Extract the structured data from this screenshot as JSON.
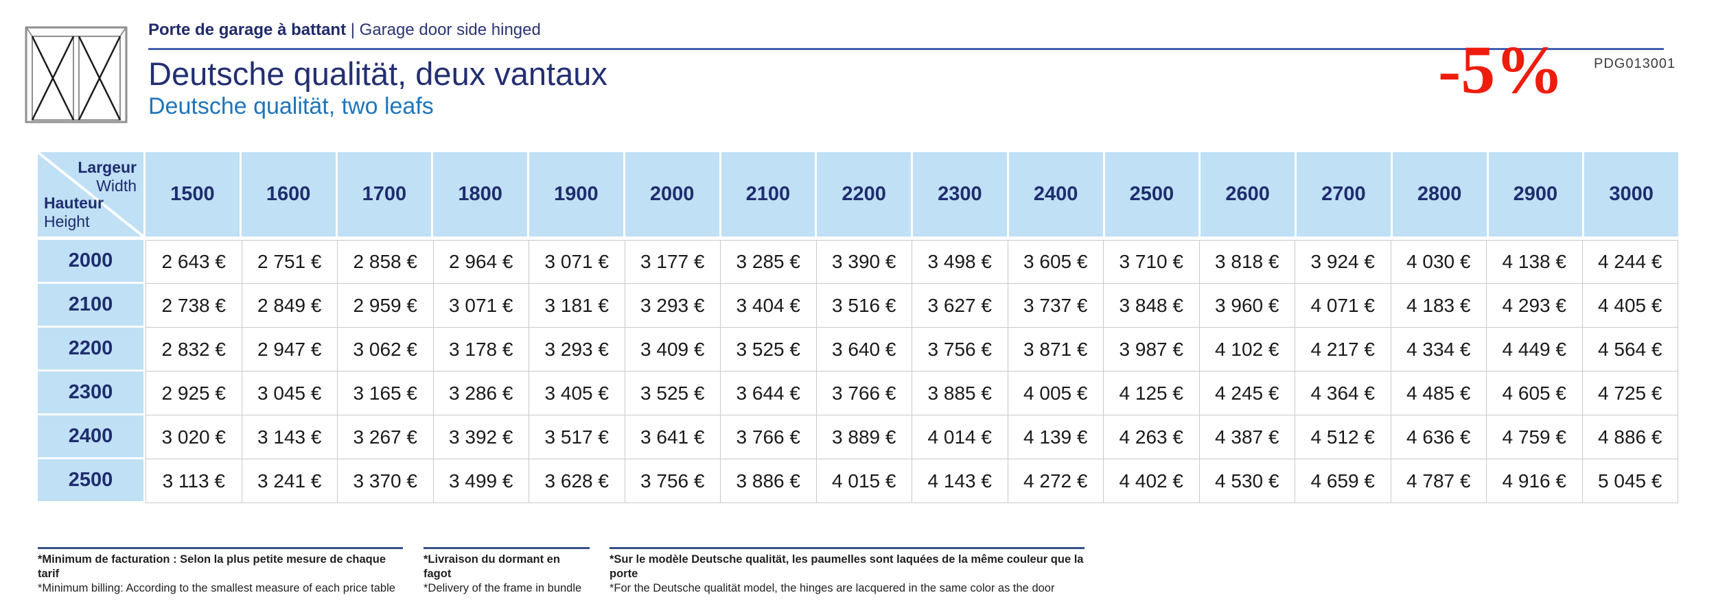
{
  "header": {
    "category_fr": "Porte de garage à battant",
    "category_sep": " | ",
    "category_en": "Garage door side hinged",
    "title_fr": "Deutsche qualität, deux vantaux",
    "title_en": "Deutsche qualität, two leafs",
    "promo": "-5%",
    "ref_code": "PDG013001"
  },
  "table": {
    "corner": {
      "largeur": "Largeur",
      "width": "Width",
      "hauteur": "Hauteur",
      "height": "Height"
    },
    "widths": [
      "1500",
      "1600",
      "1700",
      "1800",
      "1900",
      "2000",
      "2100",
      "2200",
      "2300",
      "2400",
      "2500",
      "2600",
      "2700",
      "2800",
      "2900",
      "3000"
    ],
    "rows": [
      {
        "height": "2000",
        "prices": [
          "2 643 €",
          "2 751 €",
          "2 858 €",
          "2 964 €",
          "3 071 €",
          "3 177 €",
          "3 285 €",
          "3 390 €",
          "3 498 €",
          "3 605 €",
          "3 710 €",
          "3 818 €",
          "3 924 €",
          "4 030 €",
          "4 138 €",
          "4 244 €"
        ]
      },
      {
        "height": "2100",
        "prices": [
          "2 738 €",
          "2 849 €",
          "2 959 €",
          "3 071 €",
          "3 181 €",
          "3 293 €",
          "3 404 €",
          "3 516 €",
          "3 627 €",
          "3 737 €",
          "3 848 €",
          "3 960 €",
          "4 071 €",
          "4 183 €",
          "4 293 €",
          "4 405 €"
        ]
      },
      {
        "height": "2200",
        "prices": [
          "2 832 €",
          "2 947 €",
          "3 062 €",
          "3 178 €",
          "3 293 €",
          "3 409 €",
          "3 525 €",
          "3 640 €",
          "3 756 €",
          "3 871 €",
          "3 987 €",
          "4 102 €",
          "4 217 €",
          "4 334 €",
          "4 449 €",
          "4 564 €"
        ]
      },
      {
        "height": "2300",
        "prices": [
          "2 925 €",
          "3 045 €",
          "3 165 €",
          "3 286 €",
          "3 405 €",
          "3 525 €",
          "3 644 €",
          "3 766 €",
          "3 885 €",
          "4 005 €",
          "4 125 €",
          "4 245 €",
          "4 364 €",
          "4 485 €",
          "4 605 €",
          "4 725 €"
        ]
      },
      {
        "height": "2400",
        "prices": [
          "3 020 €",
          "3 143 €",
          "3 267 €",
          "3 392 €",
          "3 517 €",
          "3 641 €",
          "3 766 €",
          "3 889 €",
          "4 014 €",
          "4 139 €",
          "4 263 €",
          "4 387 €",
          "4 512 €",
          "4 636 €",
          "4 759 €",
          "4 886 €"
        ]
      },
      {
        "height": "2500",
        "prices": [
          "3 113 €",
          "3 241 €",
          "3 370 €",
          "3 499 €",
          "3 628 €",
          "3 756 €",
          "3 886 €",
          "4 015 €",
          "4 143 €",
          "4 272 €",
          "4 402 €",
          "4 530 €",
          "4 659 €",
          "4 787 €",
          "4 916 €",
          "5 045 €"
        ]
      }
    ]
  },
  "footnotes": [
    {
      "fr": "*Minimum de facturation : Selon la plus petite mesure de chaque tarif",
      "en": "*Minimum billing: According to the smallest measure of each price table"
    },
    {
      "fr": "*Livraison du dormant en fagot",
      "en": "*Delivery of the frame in bundle"
    },
    {
      "fr": "*Sur le modèle Deutsche qualität, les paumelles sont laquées de la même couleur que la porte",
      "en": "*For the Deutsche qualität model, the hinges are lacquered in the same color as the door"
    }
  ],
  "colors": {
    "header_navy": "#1f2c6e",
    "title_navy": "#232f72",
    "subtitle_blue": "#1c75bc",
    "promo_red": "#ee1c0c",
    "table_header_bg": "#bfe0f5",
    "rule_blue": "#3f5fae"
  },
  "icons": {
    "logo": "double-door-side-hinged-icon"
  }
}
